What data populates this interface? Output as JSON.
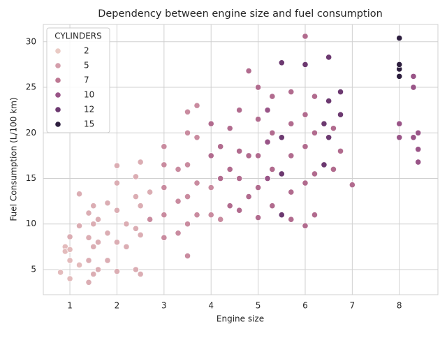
{
  "chart_data": {
    "type": "scatter",
    "title": "Dependency between engine size and fuel consumption",
    "xlabel": "Engine size",
    "ylabel": "Fuel Consumption (L/100 km)",
    "x": [
      0.8,
      0.9,
      0.9,
      1.0,
      1.0,
      1.0,
      1.0,
      1.2,
      1.2,
      1.2,
      1.4,
      1.4,
      1.4,
      1.4,
      1.5,
      1.5,
      1.5,
      1.5,
      1.6,
      1.6,
      1.6,
      1.8,
      1.8,
      1.8,
      2.0,
      2.0,
      2.0,
      2.0,
      2.0,
      2.2,
      2.2,
      2.4,
      2.4,
      2.4,
      2.4,
      2.5,
      2.5,
      2.5,
      2.5,
      2.7,
      2.7,
      3.0,
      3.0,
      3.0,
      3.0,
      3.0,
      3.3,
      3.3,
      3.3,
      3.5,
      3.5,
      3.5,
      3.5,
      3.5,
      3.5,
      3.7,
      3.7,
      3.7,
      3.7,
      4.0,
      4.0,
      4.0,
      4.0,
      4.2,
      4.2,
      4.2,
      4.4,
      4.4,
      4.4,
      4.6,
      4.6,
      4.6,
      4.6,
      4.8,
      4.8,
      4.8,
      5.0,
      5.0,
      5.0,
      5.0,
      5.0,
      5.2,
      5.2,
      5.2,
      5.3,
      5.3,
      5.3,
      5.3,
      5.5,
      5.5,
      5.5,
      5.5,
      5.7,
      5.7,
      5.7,
      5.7,
      5.7,
      6.0,
      6.0,
      6.0,
      6.0,
      6.0,
      6.0,
      6.2,
      6.2,
      6.2,
      6.2,
      6.4,
      6.4,
      6.5,
      6.5,
      6.5,
      6.6,
      6.6,
      6.75,
      6.75,
      6.75,
      7.0,
      8.0,
      8.0,
      8.0,
      8.0,
      8.0,
      8.0,
      8.3,
      8.3,
      8.3,
      8.4,
      8.4,
      8.4
    ],
    "y": [
      4.7,
      7.5,
      7.0,
      4.0,
      6.0,
      7.2,
      8.6,
      5.5,
      9.8,
      13.3,
      3.6,
      6.0,
      8.5,
      11.2,
      4.5,
      7.5,
      10.0,
      12.0,
      5.0,
      8.0,
      10.5,
      6.0,
      9.0,
      12.3,
      4.8,
      8.0,
      11.5,
      14.5,
      16.4,
      7.5,
      10.0,
      5.0,
      9.5,
      13.0,
      15.2,
      4.5,
      8.8,
      12.0,
      16.8,
      10.5,
      13.5,
      8.5,
      11.0,
      14.0,
      16.5,
      18.5,
      9.0,
      12.5,
      16.0,
      6.5,
      10.0,
      13.0,
      16.5,
      20.0,
      22.3,
      11.0,
      14.5,
      19.5,
      23.0,
      11.0,
      14.0,
      17.5,
      21.0,
      10.5,
      15.0,
      18.5,
      12.0,
      16.0,
      20.5,
      11.5,
      15.0,
      18.0,
      22.5,
      13.0,
      17.5,
      26.8,
      10.7,
      14.0,
      17.5,
      21.5,
      25.0,
      15.0,
      19.0,
      22.5,
      12.0,
      16.0,
      20.0,
      24.0,
      11.0,
      15.5,
      19.5,
      27.7,
      10.5,
      13.5,
      17.5,
      21.0,
      24.5,
      9.8,
      14.5,
      18.5,
      22.0,
      27.5,
      30.6,
      11.0,
      15.5,
      20.0,
      24.0,
      16.5,
      21.0,
      19.5,
      23.5,
      28.3,
      16.0,
      20.5,
      18.0,
      22.0,
      24.5,
      14.3,
      19.5,
      21.0,
      26.2,
      27.0,
      27.5,
      30.4,
      19.5,
      25.0,
      26.2,
      16.8,
      18.2,
      20.0
    ],
    "hue": [
      3,
      3,
      3,
      3,
      3,
      3,
      4,
      3,
      4,
      4,
      4,
      4,
      4,
      4,
      4,
      4,
      4,
      4,
      4,
      4,
      4,
      4,
      4,
      4,
      4,
      4,
      4,
      4,
      4,
      4,
      4,
      4,
      4,
      4,
      4,
      4,
      4,
      4,
      4,
      6,
      4,
      6,
      6,
      6,
      6,
      6,
      6,
      6,
      6,
      6,
      6,
      6,
      6,
      6,
      6,
      6,
      6,
      6,
      6,
      6,
      6,
      8,
      8,
      6,
      8,
      8,
      8,
      8,
      8,
      8,
      8,
      8,
      8,
      8,
      8,
      8,
      8,
      8,
      8,
      8,
      8,
      10,
      10,
      10,
      8,
      8,
      8,
      8,
      12,
      12,
      12,
      12,
      8,
      8,
      8,
      8,
      8,
      8,
      8,
      8,
      8,
      12,
      8,
      8,
      8,
      8,
      8,
      12,
      12,
      12,
      12,
      12,
      8,
      8,
      8,
      12,
      12,
      8,
      10,
      10,
      16,
      16,
      16,
      16,
      10,
      10,
      10,
      10,
      10,
      10
    ],
    "xlim": [
      0.435,
      8.82
    ],
    "ylim": [
      2.24,
      31.9
    ],
    "xticks": [
      1,
      2,
      3,
      4,
      5,
      6,
      7,
      8
    ],
    "yticks": [
      5,
      10,
      15,
      20,
      25,
      30
    ],
    "grid": true,
    "legend": {
      "title": "CYLINDERS",
      "position": "upper left",
      "values": [
        2,
        5,
        7,
        10,
        12,
        15
      ],
      "colors": [
        "#eacac4",
        "#d49eab",
        "#bd7792",
        "#995487",
        "#6c3970",
        "#2d1e3e"
      ]
    }
  }
}
